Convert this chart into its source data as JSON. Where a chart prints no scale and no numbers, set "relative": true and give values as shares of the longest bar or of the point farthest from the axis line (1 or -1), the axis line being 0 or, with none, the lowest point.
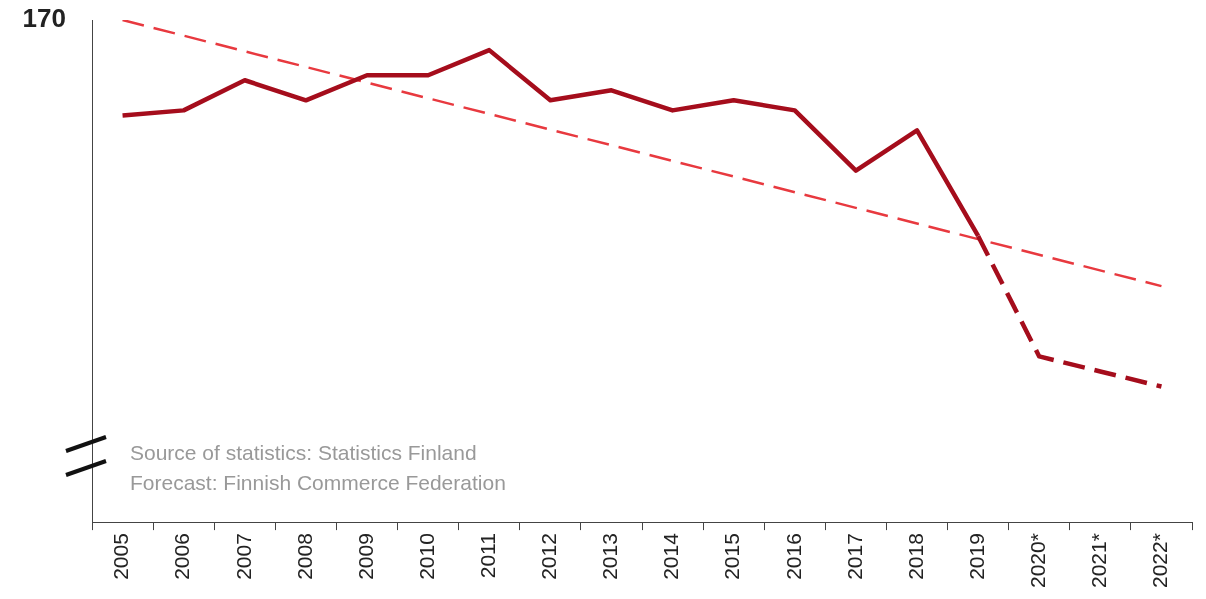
{
  "chart_data": {
    "type": "line",
    "relative": true,
    "categories": [
      "2005",
      "2006",
      "2007",
      "2008",
      "2009",
      "2010",
      "2011",
      "2012",
      "2013",
      "2014",
      "2015",
      "2016",
      "2017",
      "2018",
      "2019",
      "2020*",
      "2021*",
      "2022*"
    ],
    "series": [
      {
        "color": "#a50d1c",
        "line_style": "solid",
        "values": [
          0.81,
          0.82,
          0.88,
          0.84,
          0.89,
          0.89,
          0.94,
          0.84,
          0.86,
          0.82,
          0.84,
          0.82,
          0.7,
          0.78,
          0.57,
          null,
          null,
          null
        ]
      },
      {
        "color": "#a50d1c",
        "line_style": "dashed",
        "values": [
          null,
          null,
          null,
          null,
          null,
          null,
          null,
          null,
          null,
          null,
          null,
          null,
          null,
          null,
          0.57,
          0.33,
          0.3,
          0.27
        ]
      },
      {
        "color": "#e8393f",
        "line_style": "dashed",
        "values": [
          1,
          null,
          null,
          null,
          null,
          null,
          null,
          null,
          null,
          null,
          null,
          null,
          null,
          null,
          null,
          null,
          null,
          0.47
        ]
      }
    ],
    "annotations": [
      "170",
      "Source of statistics: Statistics Finland",
      "Forecast: Finnish Commerce Federation"
    ],
    "grid": false,
    "legend": false,
    "marker": "none"
  }
}
